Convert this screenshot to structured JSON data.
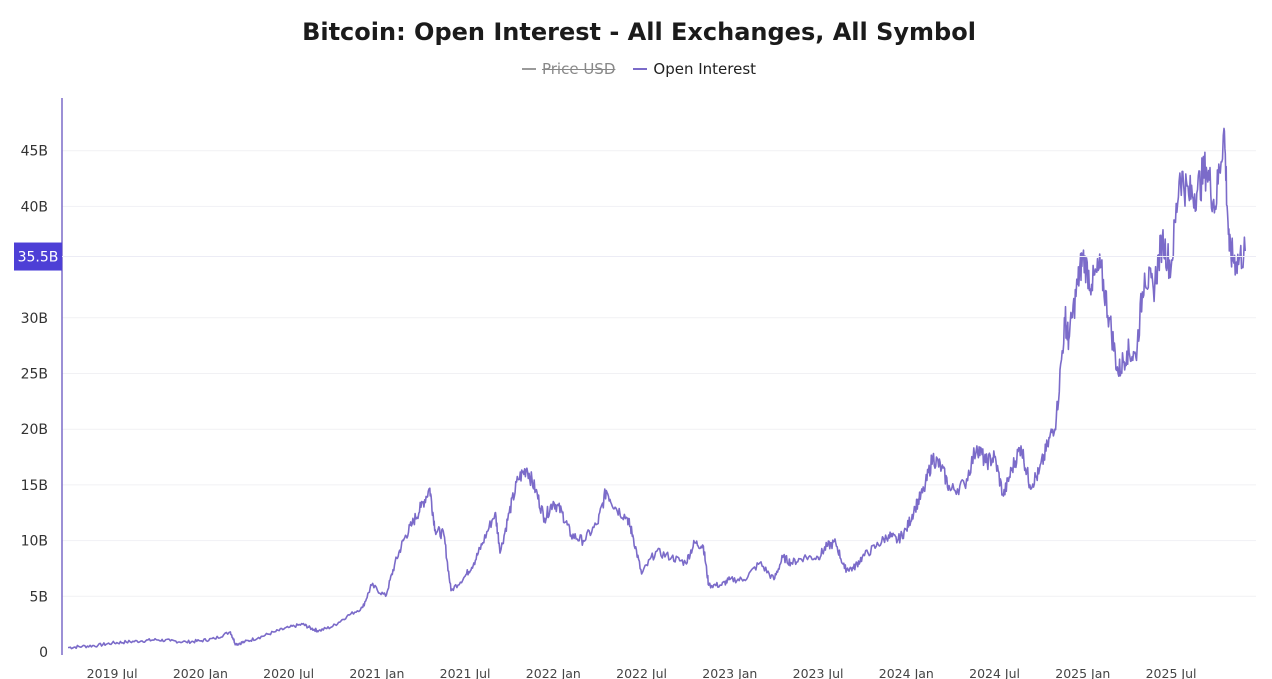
{
  "chart_data": {
    "type": "line",
    "title": "Bitcoin: Open Interest - All Exchanges, All Symbol",
    "legend": [
      {
        "name": "Price USD",
        "color": "#9a9a9a",
        "visible": false
      },
      {
        "name": "Open Interest",
        "color": "#7b6bc9",
        "visible": true
      }
    ],
    "xlabel": "",
    "ylabel": "",
    "y_unit_scale": 1000000000,
    "ylim": [
      0,
      48
    ],
    "y_ticks": [
      {
        "value": 0,
        "label": "0"
      },
      {
        "value": 5,
        "label": "5B"
      },
      {
        "value": 10,
        "label": "10B"
      },
      {
        "value": 15,
        "label": "15B"
      },
      {
        "value": 20,
        "label": "20B"
      },
      {
        "value": 25,
        "label": "25B"
      },
      {
        "value": 30,
        "label": "30B"
      },
      {
        "value": 40,
        "label": "40B"
      },
      {
        "value": 45,
        "label": "45B"
      }
    ],
    "current_value_marker": {
      "value": 35.5,
      "label": "35.5B",
      "color": "#4d3fd6"
    },
    "x_range_months": [
      2019.25,
      2025.97
    ],
    "x_ticks": [
      {
        "value": 2019.5,
        "label": "2019 Jul"
      },
      {
        "value": 2020.0,
        "label": "2020 Jan"
      },
      {
        "value": 2020.5,
        "label": "2020 Jul"
      },
      {
        "value": 2021.0,
        "label": "2021 Jan"
      },
      {
        "value": 2021.5,
        "label": "2021 Jul"
      },
      {
        "value": 2022.0,
        "label": "2022 Jan"
      },
      {
        "value": 2022.5,
        "label": "2022 Jul"
      },
      {
        "value": 2023.0,
        "label": "2023 Jan"
      },
      {
        "value": 2023.5,
        "label": "2023 Jul"
      },
      {
        "value": 2024.0,
        "label": "2024 Jan"
      },
      {
        "value": 2024.5,
        "label": "2024 Jul"
      },
      {
        "value": 2025.0,
        "label": "2025 Jan"
      },
      {
        "value": 2025.5,
        "label": "2025 Jul"
      }
    ],
    "series": [
      {
        "name": "Open Interest",
        "unit": "billion USD",
        "points": [
          [
            2019.25,
            0.4
          ],
          [
            2019.33,
            0.5
          ],
          [
            2019.42,
            0.6
          ],
          [
            2019.5,
            0.8
          ],
          [
            2019.58,
            0.9
          ],
          [
            2019.67,
            1.0
          ],
          [
            2019.75,
            1.1
          ],
          [
            2019.83,
            1.0
          ],
          [
            2019.92,
            0.9
          ],
          [
            2020.0,
            1.0
          ],
          [
            2020.08,
            1.2
          ],
          [
            2020.17,
            1.8
          ],
          [
            2020.2,
            0.7
          ],
          [
            2020.25,
            0.9
          ],
          [
            2020.33,
            1.3
          ],
          [
            2020.42,
            1.8
          ],
          [
            2020.5,
            2.2
          ],
          [
            2020.58,
            2.5
          ],
          [
            2020.63,
            2.1
          ],
          [
            2020.67,
            1.9
          ],
          [
            2020.75,
            2.3
          ],
          [
            2020.83,
            3.2
          ],
          [
            2020.92,
            4.0
          ],
          [
            2020.97,
            6.0
          ],
          [
            2021.05,
            5.0
          ],
          [
            2021.1,
            7.8
          ],
          [
            2021.15,
            10.0
          ],
          [
            2021.2,
            11.5
          ],
          [
            2021.25,
            13.0
          ],
          [
            2021.3,
            14.7
          ],
          [
            2021.33,
            11.0
          ],
          [
            2021.38,
            10.5
          ],
          [
            2021.42,
            5.5
          ],
          [
            2021.5,
            6.8
          ],
          [
            2021.55,
            8.0
          ],
          [
            2021.6,
            9.8
          ],
          [
            2021.67,
            12.5
          ],
          [
            2021.7,
            9.0
          ],
          [
            2021.75,
            12.5
          ],
          [
            2021.8,
            15.5
          ],
          [
            2021.85,
            16.5
          ],
          [
            2021.9,
            14.5
          ],
          [
            2021.95,
            12.0
          ],
          [
            2022.0,
            13.5
          ],
          [
            2022.05,
            12.5
          ],
          [
            2022.1,
            10.5
          ],
          [
            2022.17,
            10.0
          ],
          [
            2022.25,
            11.5
          ],
          [
            2022.3,
            14.5
          ],
          [
            2022.35,
            13.0
          ],
          [
            2022.42,
            12.0
          ],
          [
            2022.45,
            10.5
          ],
          [
            2022.5,
            7.0
          ],
          [
            2022.58,
            9.0
          ],
          [
            2022.67,
            8.5
          ],
          [
            2022.75,
            8.0
          ],
          [
            2022.8,
            9.8
          ],
          [
            2022.85,
            9.5
          ],
          [
            2022.88,
            6.0
          ],
          [
            2022.95,
            6.0
          ],
          [
            2023.0,
            6.5
          ],
          [
            2023.08,
            6.5
          ],
          [
            2023.17,
            8.0
          ],
          [
            2023.25,
            6.5
          ],
          [
            2023.3,
            8.5
          ],
          [
            2023.35,
            8.0
          ],
          [
            2023.42,
            8.5
          ],
          [
            2023.5,
            8.5
          ],
          [
            2023.55,
            9.5
          ],
          [
            2023.6,
            9.8
          ],
          [
            2023.65,
            7.5
          ],
          [
            2023.7,
            7.5
          ],
          [
            2023.75,
            8.5
          ],
          [
            2023.83,
            9.5
          ],
          [
            2023.9,
            10.5
          ],
          [
            2023.95,
            10.0
          ],
          [
            2024.0,
            11.0
          ],
          [
            2024.05,
            13.0
          ],
          [
            2024.1,
            14.5
          ],
          [
            2024.15,
            17.5
          ],
          [
            2024.2,
            16.5
          ],
          [
            2024.25,
            14.5
          ],
          [
            2024.33,
            15.0
          ],
          [
            2024.4,
            18.5
          ],
          [
            2024.45,
            17.0
          ],
          [
            2024.5,
            17.5
          ],
          [
            2024.55,
            14.0
          ],
          [
            2024.6,
            16.5
          ],
          [
            2024.65,
            18.5
          ],
          [
            2024.7,
            15.0
          ],
          [
            2024.75,
            16.0
          ],
          [
            2024.8,
            18.5
          ],
          [
            2024.85,
            21.0
          ],
          [
            2024.9,
            30.0
          ],
          [
            2024.92,
            28.0
          ],
          [
            2024.97,
            33.0
          ],
          [
            2025.0,
            35.5
          ],
          [
            2025.05,
            33.0
          ],
          [
            2025.1,
            34.5
          ],
          [
            2025.15,
            30.0
          ],
          [
            2025.2,
            25.0
          ],
          [
            2025.25,
            27.0
          ],
          [
            2025.3,
            26.5
          ],
          [
            2025.35,
            34.0
          ],
          [
            2025.4,
            32.5
          ],
          [
            2025.45,
            37.0
          ],
          [
            2025.5,
            34.5
          ],
          [
            2025.55,
            43.0
          ],
          [
            2025.6,
            41.0
          ],
          [
            2025.65,
            41.5
          ],
          [
            2025.7,
            43.5
          ],
          [
            2025.75,
            40.0
          ],
          [
            2025.8,
            47.0
          ],
          [
            2025.83,
            36.0
          ],
          [
            2025.87,
            35.0
          ],
          [
            2025.92,
            36.0
          ]
        ]
      }
    ]
  }
}
